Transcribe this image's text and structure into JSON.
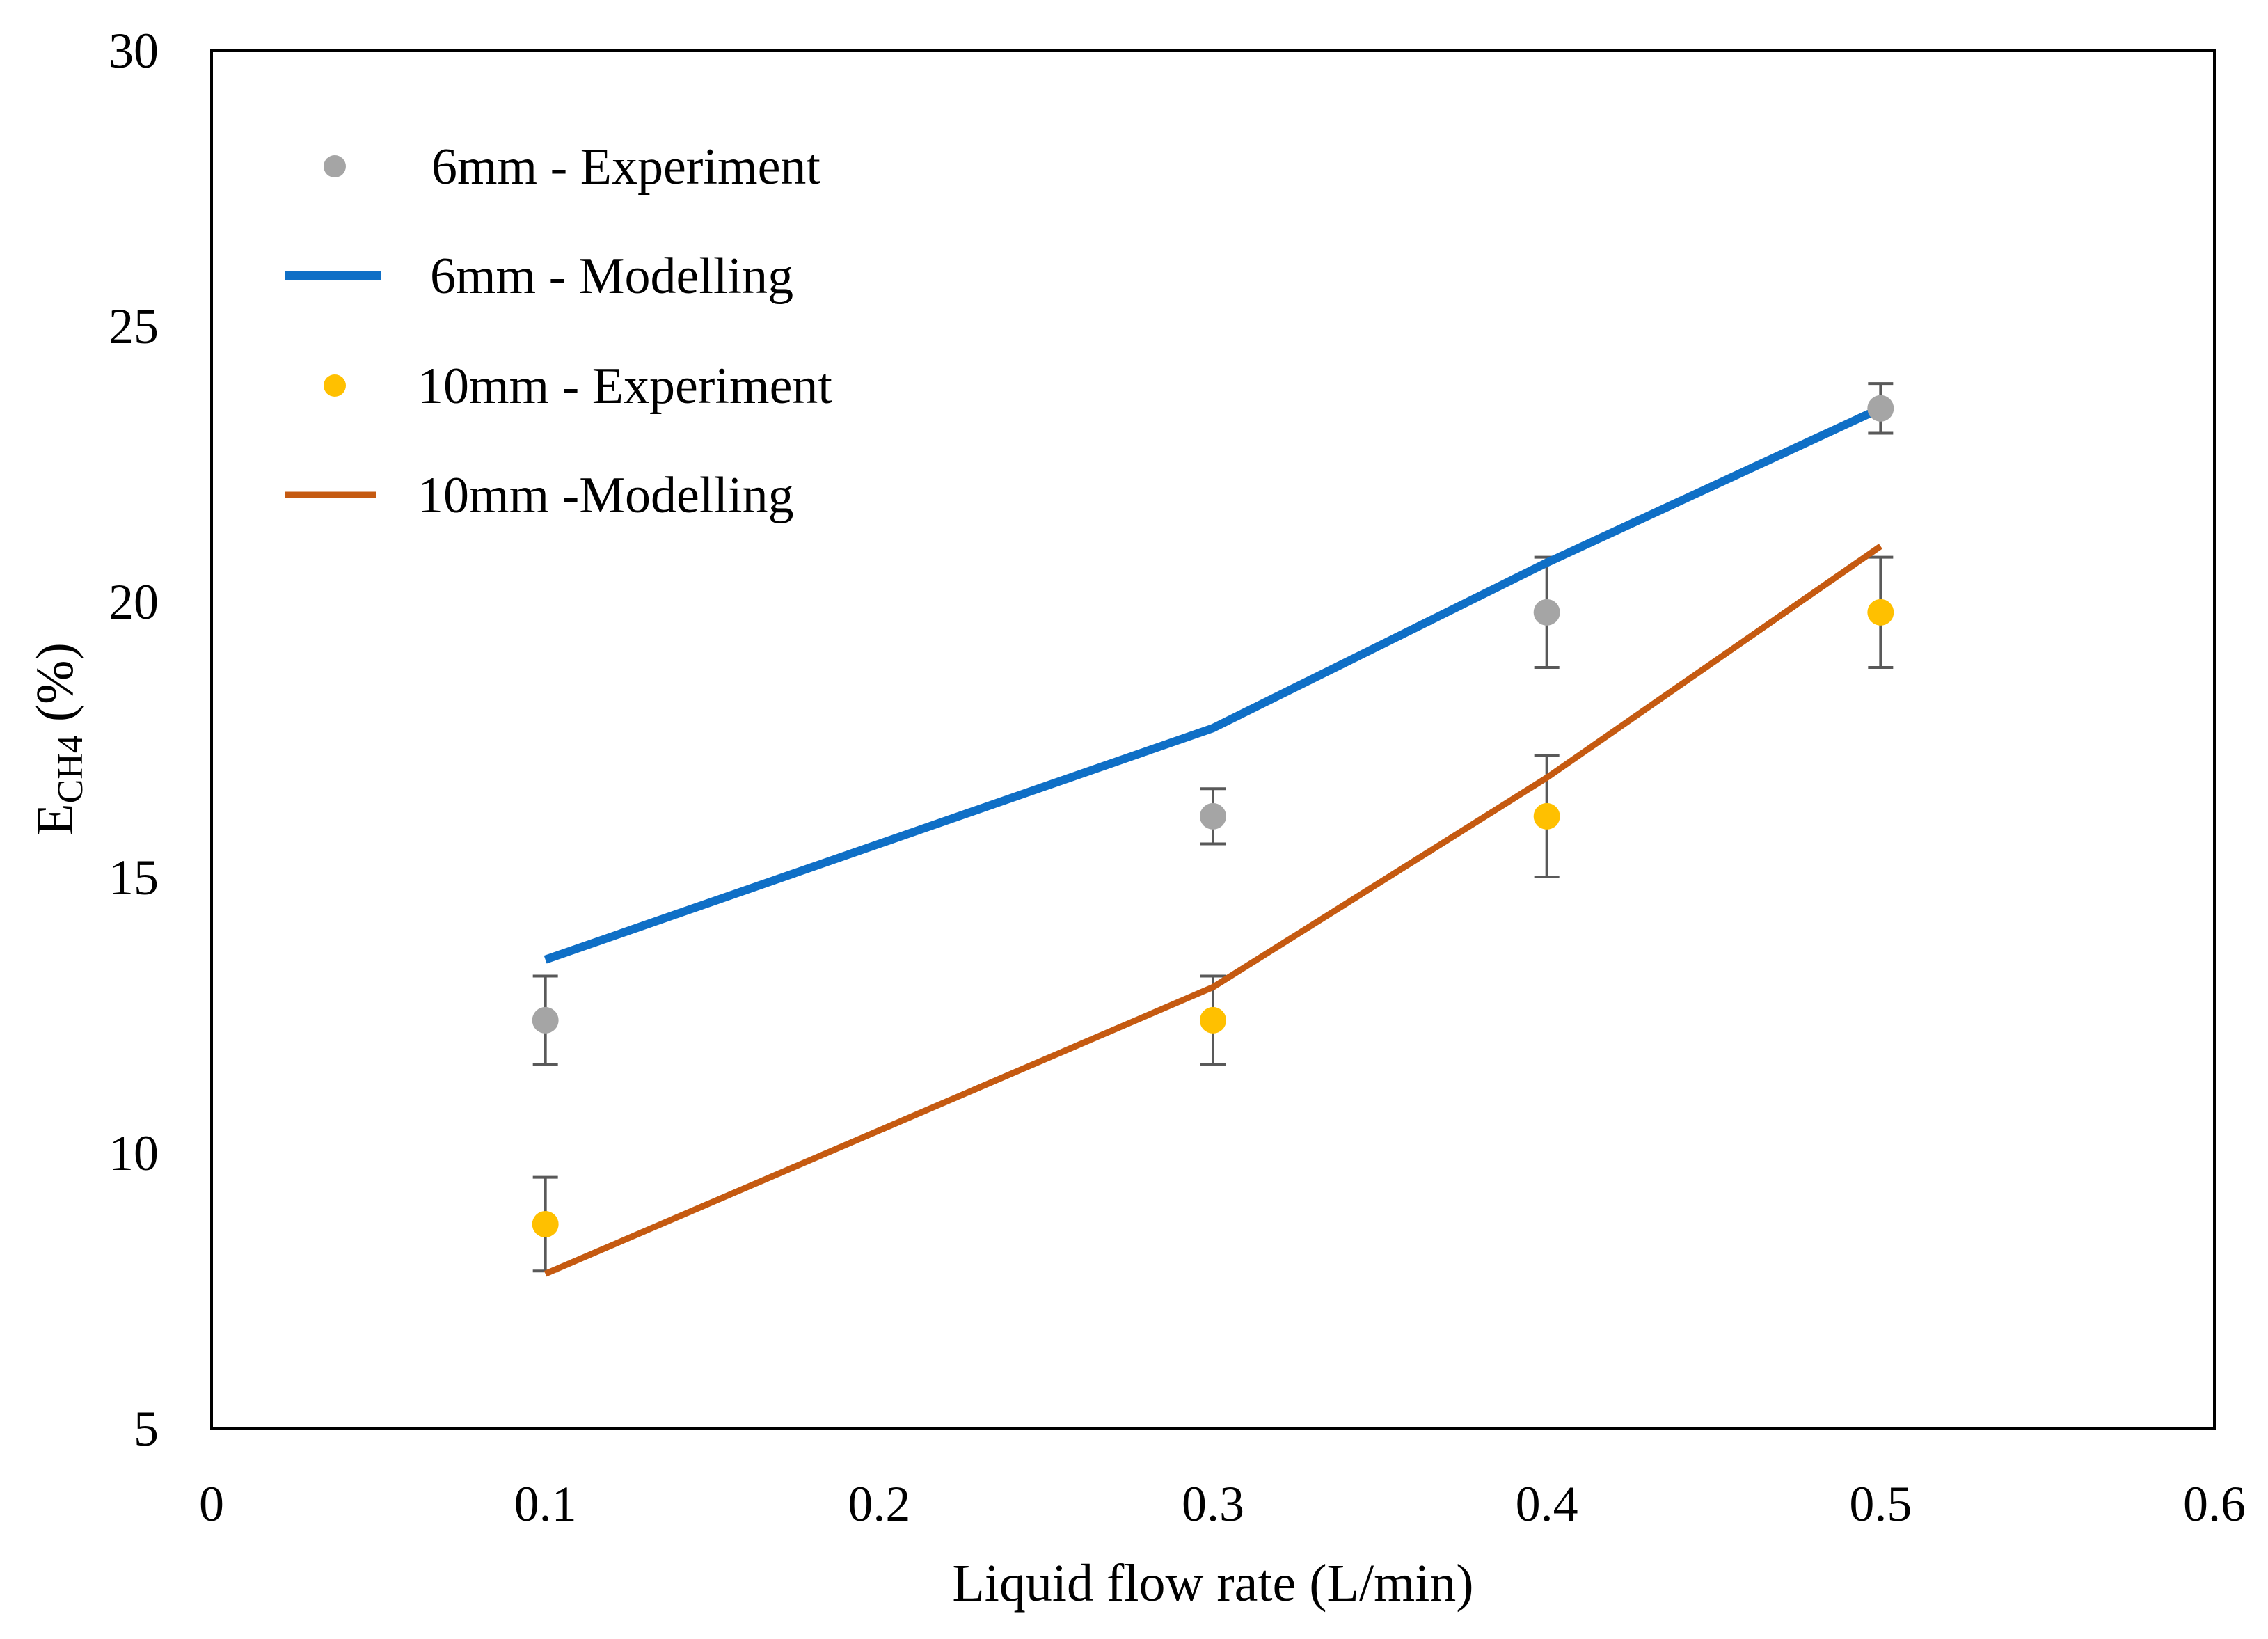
{
  "chart_data": {
    "type": "line",
    "title": "",
    "xlabel": "Liquid flow rate (L/min)",
    "ylabel_main": "E",
    "ylabel_sub": "CH4",
    "ylabel_tail": " (%)",
    "xlim": [
      0,
      0.6
    ],
    "ylim": [
      5,
      30
    ],
    "x_ticks": [
      0,
      0.1,
      0.2,
      0.3,
      0.4,
      0.5,
      0.6
    ],
    "x_tick_labels": [
      "0",
      "0.1",
      "0.2",
      "0.3",
      "0.4",
      "0.5",
      "0.6"
    ],
    "y_ticks": [
      5,
      10,
      15,
      20,
      25,
      30
    ],
    "y_tick_labels": [
      "5",
      "10",
      "15",
      "20",
      "25",
      "30"
    ],
    "grid": false,
    "legend_position": "top-left",
    "series": [
      {
        "name": "6mm - Experiment",
        "kind": "scatter",
        "color": "#a5a5a5",
        "x": [
          0.1,
          0.3,
          0.4,
          0.5
        ],
        "y": [
          12.4,
          16.1,
          19.8,
          23.5
        ],
        "error": [
          0.8,
          0.5,
          1.0,
          0.45
        ]
      },
      {
        "name": "6mm - Modelling",
        "kind": "line",
        "color": "#0f6fc6",
        "x": [
          0.1,
          0.3,
          0.4,
          0.5
        ],
        "y": [
          13.5,
          17.7,
          20.7,
          23.5
        ]
      },
      {
        "name": "10mm - Experiment",
        "kind": "scatter",
        "color": "#ffc000",
        "x": [
          0.1,
          0.3,
          0.4,
          0.5
        ],
        "y": [
          8.7,
          12.4,
          16.1,
          19.8
        ],
        "error": [
          0.85,
          0.8,
          1.1,
          1.0
        ]
      },
      {
        "name": "10mm -Modelling",
        "kind": "line",
        "color": "#c55a11",
        "x": [
          0.1,
          0.3,
          0.4,
          0.5
        ],
        "y": [
          7.8,
          13.0,
          16.8,
          21.0
        ]
      }
    ],
    "error_bar_color": "#595959"
  }
}
